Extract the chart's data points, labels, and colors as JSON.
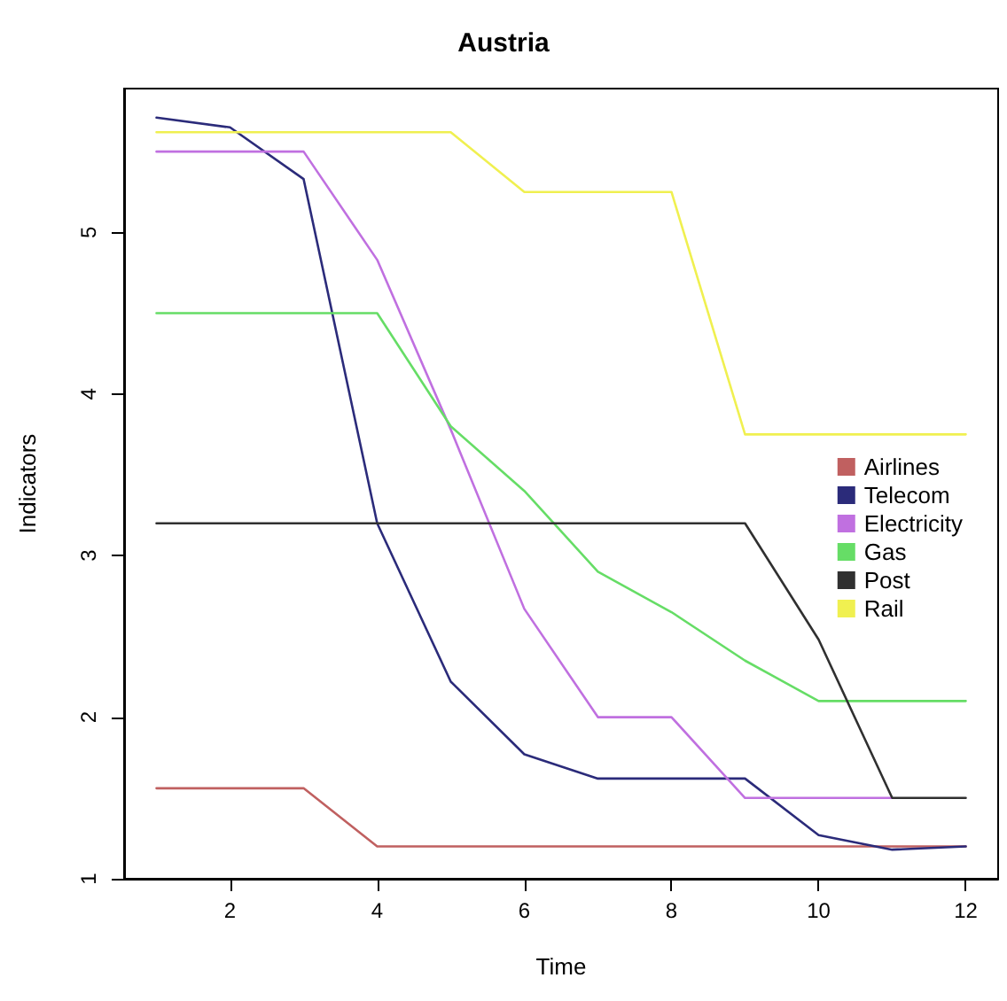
{
  "chart_data": {
    "type": "line",
    "title": "Austria",
    "xlabel": "Time",
    "ylabel": "Indicators",
    "x": [
      1,
      2,
      3,
      4,
      5,
      6,
      7,
      8,
      9,
      10,
      11,
      12
    ],
    "xlim": [
      0.56,
      12.44
    ],
    "xticks": [
      2,
      4,
      6,
      8,
      10,
      12
    ],
    "ylim": [
      1.0,
      5.89
    ],
    "yticks": [
      1,
      2,
      3,
      4,
      5
    ],
    "grid": false,
    "legend": "right",
    "marker": "none",
    "line_style": "solid",
    "series": [
      {
        "name": "Airlines",
        "color": "#c06060",
        "values": [
          1.56,
          1.56,
          1.56,
          1.2,
          1.2,
          1.2,
          1.2,
          1.2,
          1.2,
          1.2,
          1.2,
          1.2
        ]
      },
      {
        "name": "Telecom",
        "color": "#2b2b7a",
        "values": [
          5.71,
          5.65,
          5.33,
          3.2,
          2.22,
          1.77,
          1.62,
          1.62,
          1.62,
          1.27,
          1.18,
          1.2
        ]
      },
      {
        "name": "Electricity",
        "color": "#c070e0",
        "values": [
          5.5,
          5.5,
          5.5,
          4.83,
          3.78,
          2.67,
          2.0,
          2.0,
          1.5,
          1.5,
          1.5,
          null
        ]
      },
      {
        "name": "Gas",
        "color": "#66dd66",
        "values": [
          4.5,
          4.5,
          4.5,
          4.5,
          3.8,
          3.4,
          2.9,
          2.65,
          2.35,
          2.1,
          2.1,
          2.1
        ]
      },
      {
        "name": "Post",
        "color": "#303030",
        "values": [
          3.2,
          3.2,
          3.2,
          3.2,
          3.2,
          3.2,
          3.2,
          3.2,
          3.2,
          2.48,
          1.5,
          1.5
        ]
      },
      {
        "name": "Rail",
        "color": "#f0f050",
        "values": [
          5.62,
          5.62,
          5.62,
          5.62,
          5.62,
          5.25,
          5.25,
          5.25,
          3.75,
          3.75,
          3.75,
          3.75
        ]
      }
    ]
  }
}
